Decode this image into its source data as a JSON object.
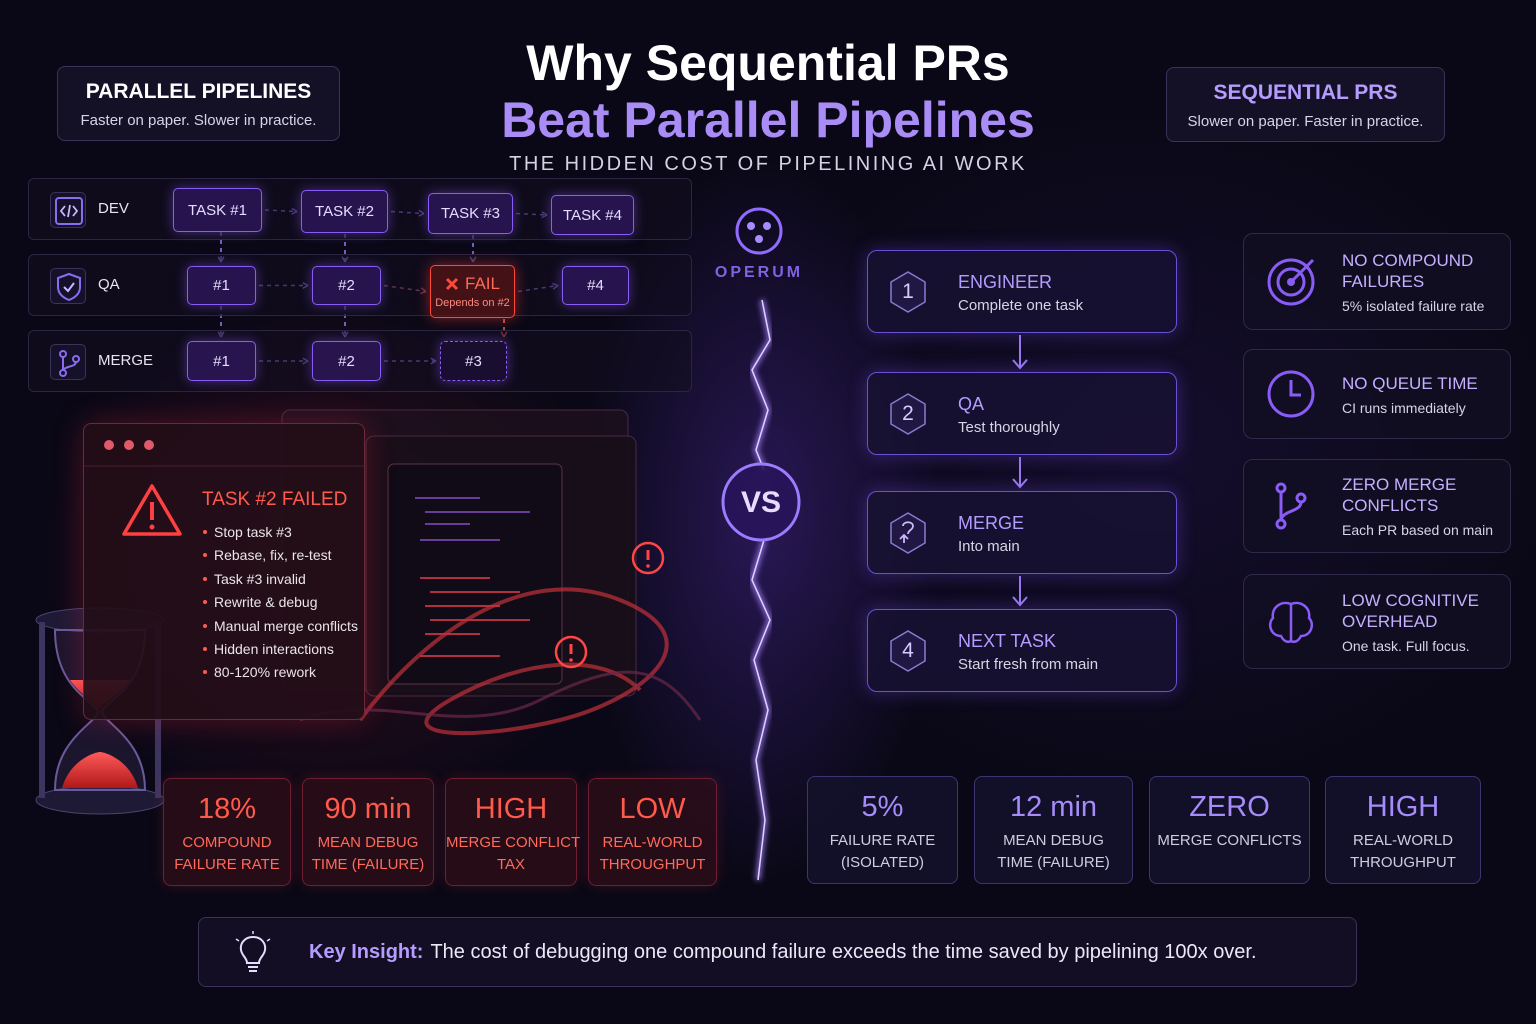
{
  "header": {
    "title_line1": "Why Sequential PRs",
    "title_line2": "Beat Parallel Pipelines",
    "subtitle": "THE HIDDEN COST OF PIPELINING AI WORK"
  },
  "left_card": {
    "title": "PARALLEL PIPELINES",
    "text": "Faster on paper. Slower in practice."
  },
  "right_card": {
    "title": "SEQUENTIAL PRS",
    "text": "Slower on paper. Faster in practice."
  },
  "brand": "OPERUM",
  "vs": "VS",
  "pipeline": {
    "lanes": [
      {
        "label": "DEV",
        "cells": [
          "TASK #1",
          "TASK #2",
          "TASK #3",
          "TASK #4"
        ]
      },
      {
        "label": "QA",
        "cells": [
          "#1",
          "#2",
          "FAIL",
          "#4"
        ],
        "note": "Depends on #2"
      },
      {
        "label": "MERGE",
        "cells": [
          "#1",
          "#2",
          "#3"
        ]
      }
    ]
  },
  "failure_panel": {
    "title": "TASK #2 FAILED",
    "items": [
      "Stop task #3",
      "Rebase, fix, re-test",
      "Task #3 invalid",
      "Rewrite & debug",
      "Manual merge conflicts",
      "Hidden interactions",
      "80-120% rework"
    ]
  },
  "left_stats": [
    {
      "value": "18%",
      "label_lines": [
        "COMPOUND",
        "FAILURE RATE"
      ]
    },
    {
      "value": "90 min",
      "label_lines": [
        "MEAN DEBUG",
        "TIME (FAILURE)"
      ]
    },
    {
      "value": "HIGH",
      "label_lines": [
        "MERGE CONFLICT",
        "TAX"
      ]
    },
    {
      "value": "LOW",
      "label_lines": [
        "REAL-WORLD",
        "THROUGHPUT"
      ]
    }
  ],
  "steps": [
    {
      "number": "1",
      "title": "ENGINEER",
      "text": "Complete one task"
    },
    {
      "number": "2",
      "title": "QA",
      "text": "Test thoroughly"
    },
    {
      "title": "MERGE",
      "text": "Into main"
    },
    {
      "number": "4",
      "title": "NEXT TASK",
      "text": "Start fresh from main"
    }
  ],
  "benefits": [
    {
      "title_lines": [
        "NO COMPOUND",
        "FAILURES"
      ],
      "text": "5% isolated failure rate"
    },
    {
      "title_lines": [
        "NO QUEUE TIME"
      ],
      "text": "CI runs immediately"
    },
    {
      "title_lines": [
        "ZERO MERGE",
        "CONFLICTS"
      ],
      "text": "Each PR based on main"
    },
    {
      "title_lines": [
        "LOW COGNITIVE",
        "OVERHEAD"
      ],
      "text": "One task. Full focus."
    }
  ],
  "right_stats": [
    {
      "value": "5%",
      "label_lines": [
        "FAILURE RATE",
        "(ISOLATED)"
      ]
    },
    {
      "value": "12 min",
      "label_lines": [
        "MEAN DEBUG",
        "TIME (FAILURE)"
      ]
    },
    {
      "value": "ZERO",
      "label_lines": [
        "MERGE CONFLICTS"
      ]
    },
    {
      "value": "HIGH",
      "label_lines": [
        "REAL-WORLD",
        "THROUGHPUT"
      ]
    }
  ],
  "insight": {
    "label": "Key Insight:",
    "text": "The cost of debugging one compound failure exceeds the time saved by pipelining 100x over."
  }
}
